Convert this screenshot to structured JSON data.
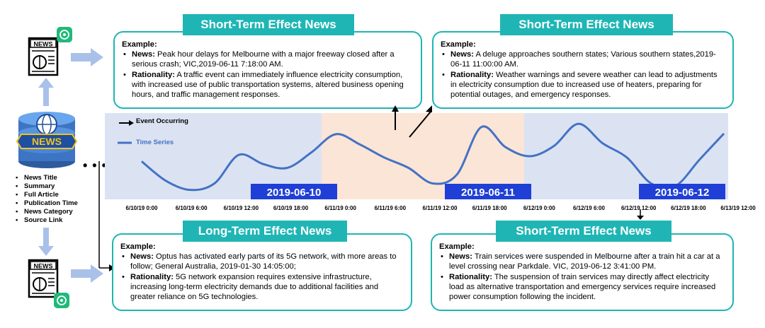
{
  "colors": {
    "teal": "#1fb5b5",
    "series": "#4472c4",
    "blue_bg": "#dbe3f3",
    "orange_bg": "#fbe5d6",
    "date_label": "#1f3fd6"
  },
  "left_panel": {
    "db_label": "NEWS",
    "top_icon_label": "NEWS",
    "bottom_icon_label": "NEWS",
    "fields": [
      "News Title",
      "Summary",
      "Full Article",
      "Publication Time",
      "News Category",
      "Source Link"
    ],
    "ellipsis": "• • •  • • •"
  },
  "boxes": [
    {
      "header": "Short-Term Effect News",
      "example": "Example:",
      "news_label": "News:",
      "news_text": " Peak hour delays for Melbourne with a major freeway closed after a serious crash; VIC,2019-06-11  7:18:00 AM.",
      "rat_label": "Rationality:",
      "rat_text": " A traffic event can immediately influence electricity consumption, with increased use of public transportation systems, altered business opening hours, and traffic management responses."
    },
    {
      "header": "Short-Term Effect News",
      "example": "Example:",
      "news_label": "News:",
      "news_text": " A deluge approaches southern states; Various southern states,2019-06-11  11:00:00 AM.",
      "rat_label": "Rationality:",
      "rat_text": " Weather warnings and severe weather can lead to adjustments in electricity consumption due to increased use of heaters, preparing for potential outages, and emergency responses."
    },
    {
      "header": "Long-Term Effect News",
      "example": "Example:",
      "news_label": "News:",
      "news_text": " Optus has activated early parts of its 5G network, with more areas to follow; General Australia, 2019-01-30 14:05:00;",
      "rat_label": "Rationality:",
      "rat_text": " 5G network expansion requires extensive infrastructure, increasing long-term electricity demands due to additional facilities and greater reliance on 5G technologies."
    },
    {
      "header": "Short-Term Effect News",
      "example": "Example:",
      "news_label": "News:",
      "news_text": " Train services were suspended in Melbourne after a train hit a car at a level crossing near Parkdale. VIC, 2019-06-12  3:41:00 PM.",
      "rat_label": "Rationality:",
      "rat_text": " The suspension of train services may directly affect electricity load as alternative transportation and emergency services require increased power consumption following the incident."
    }
  ],
  "chart_data": {
    "type": "line",
    "legend": [
      {
        "name": "Event Occurring",
        "marker": "arrow"
      },
      {
        "name": "Time Series",
        "marker": "line"
      }
    ],
    "x_ticks": [
      "6/10/19 0:00",
      "6/10/19 6:00",
      "6/10/19 12:00",
      "6/10/19 18:00",
      "6/11/19 0:00",
      "6/11/19 6:00",
      "6/11/19 12:00",
      "6/11/19 18:00",
      "6/12/19 0:00",
      "6/12/19 6:00",
      "6/12/19 12:00",
      "6/12/19 18:00",
      "6/13/19 12:00"
    ],
    "date_labels": [
      "2019-06-10",
      "2019-06-11",
      "2019-06-12"
    ],
    "x_hours": [
      0,
      3,
      6,
      9,
      12,
      15,
      18,
      21,
      24,
      27,
      30,
      33,
      36,
      39,
      42,
      45,
      48,
      51,
      54,
      57,
      60,
      63,
      66,
      69,
      72
    ],
    "values": [
      0.52,
      0.22,
      0.08,
      0.18,
      0.62,
      0.48,
      0.42,
      0.66,
      0.94,
      0.78,
      0.58,
      0.42,
      0.18,
      0.32,
      1.05,
      0.74,
      0.6,
      0.76,
      1.1,
      0.8,
      0.58,
      0.18,
      0.14,
      0.55,
      0.95
    ],
    "highlight_range_hours": [
      24,
      48
    ],
    "event_hours": [
      31.3,
      35
    ]
  }
}
